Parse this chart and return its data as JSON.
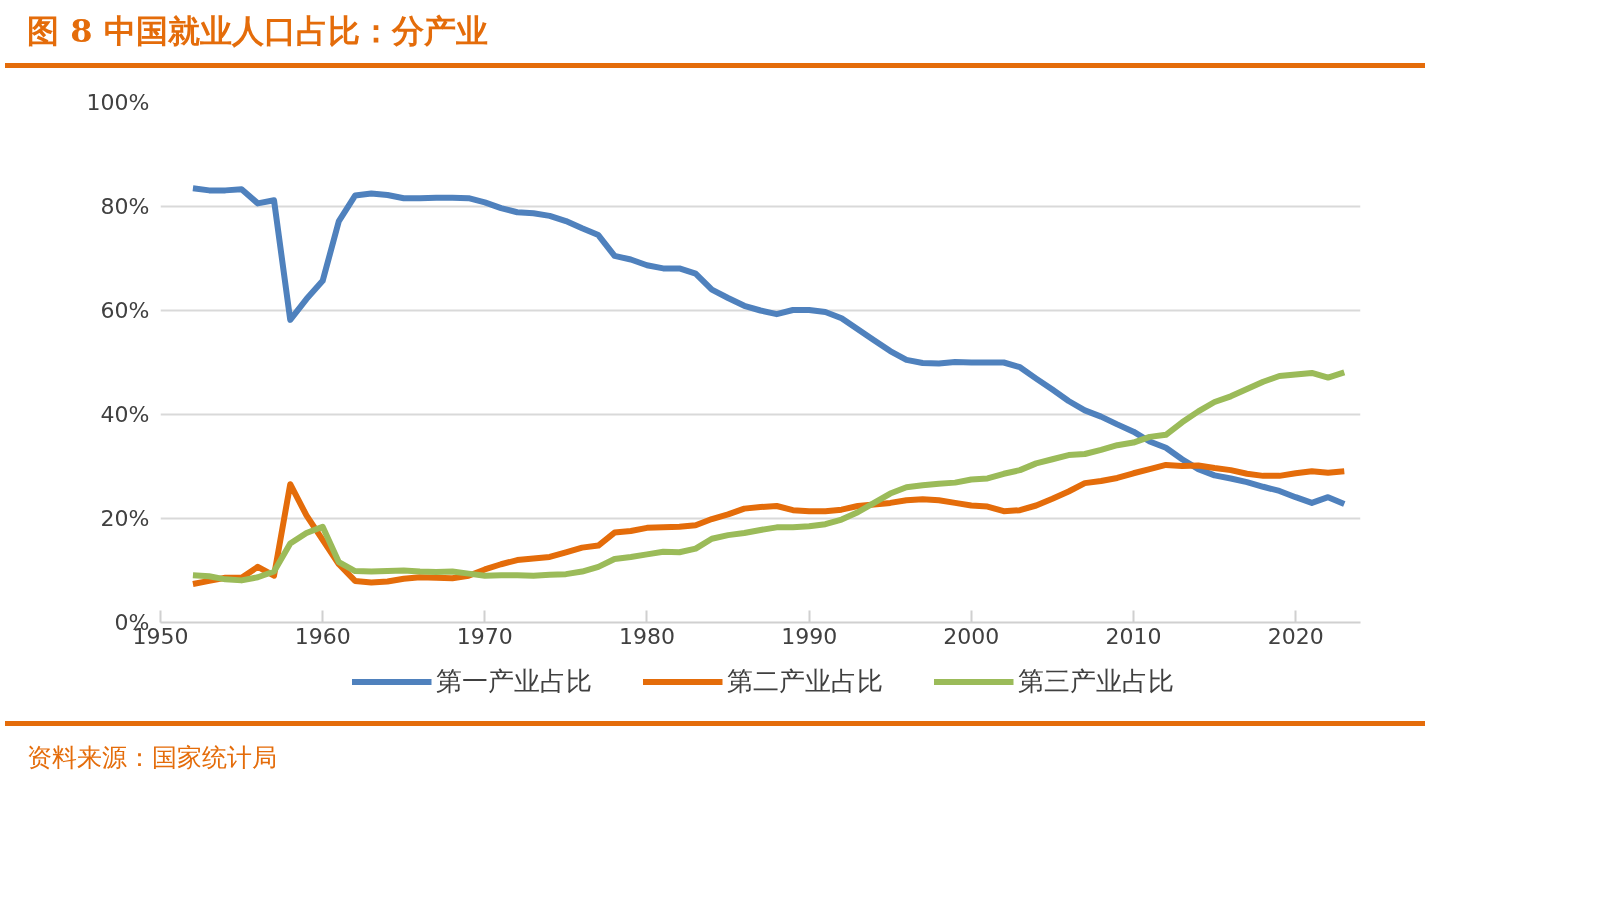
{
  "chart_data": {
    "type": "line",
    "title": "图 8  中国就业人口占比：分产业",
    "annotations": [
      "资料来源：国家统计局"
    ],
    "x": [
      1952,
      1953,
      1954,
      1955,
      1956,
      1957,
      1958,
      1959,
      1960,
      1961,
      1962,
      1963,
      1964,
      1965,
      1966,
      1967,
      1968,
      1969,
      1970,
      1971,
      1972,
      1973,
      1974,
      1975,
      1976,
      1977,
      1978,
      1979,
      1980,
      1981,
      1982,
      1983,
      1984,
      1985,
      1986,
      1987,
      1988,
      1989,
      1990,
      1991,
      1992,
      1993,
      1994,
      1995,
      1996,
      1997,
      1998,
      1999,
      2000,
      2001,
      2002,
      2003,
      2004,
      2005,
      2006,
      2007,
      2008,
      2009,
      2010,
      2011,
      2012,
      2013,
      2014,
      2015,
      2016,
      2017,
      2018,
      2019,
      2020,
      2021,
      2022,
      2023
    ],
    "series": [
      {
        "name": "第一产业占比",
        "color": "#4f81bd",
        "values": [
          83.5,
          83.1,
          83.1,
          83.3,
          80.6,
          81.2,
          58.2,
          62.2,
          65.7,
          77.2,
          82.1,
          82.5,
          82.2,
          81.6,
          81.6,
          81.7,
          81.7,
          81.6,
          80.8,
          79.7,
          78.9,
          78.7,
          78.2,
          77.2,
          75.8,
          74.5,
          70.5,
          69.8,
          68.7,
          68.1,
          68.1,
          67.1,
          64.0,
          62.4,
          60.9,
          60.0,
          59.3,
          60.1,
          60.1,
          59.7,
          58.5,
          56.4,
          54.3,
          52.2,
          50.5,
          49.9,
          49.8,
          50.1,
          50.0,
          50.0,
          50.0,
          49.1,
          46.9,
          44.8,
          42.6,
          40.8,
          39.6,
          38.1,
          36.7,
          34.8,
          33.6,
          31.4,
          29.5,
          28.3,
          27.7,
          27.0,
          26.1,
          25.3,
          24.1,
          23.0,
          24.1,
          22.8
        ]
      },
      {
        "name": "第二产业占比",
        "color": "#e46c0a",
        "values": [
          7.4,
          8.0,
          8.6,
          8.6,
          10.7,
          9.0,
          26.6,
          20.6,
          15.9,
          11.2,
          8.0,
          7.7,
          7.9,
          8.4,
          8.7,
          8.6,
          8.5,
          9.0,
          10.2,
          11.2,
          12.0,
          12.3,
          12.6,
          13.5,
          14.4,
          14.8,
          17.3,
          17.6,
          18.2,
          18.3,
          18.4,
          18.7,
          19.9,
          20.8,
          21.9,
          22.2,
          22.4,
          21.6,
          21.4,
          21.4,
          21.7,
          22.4,
          22.7,
          23.0,
          23.5,
          23.7,
          23.5,
          23.0,
          22.5,
          22.3,
          21.4,
          21.6,
          22.5,
          23.8,
          25.2,
          26.8,
          27.2,
          27.8,
          28.7,
          29.5,
          30.3,
          30.1,
          30.2,
          29.7,
          29.3,
          28.6,
          28.2,
          28.2,
          28.7,
          29.1,
          28.8,
          29.1
        ]
      },
      {
        "name": "第三产业占比",
        "color": "#9bbb59",
        "values": [
          9.1,
          8.9,
          8.3,
          8.1,
          8.7,
          9.8,
          15.2,
          17.2,
          18.4,
          11.6,
          9.9,
          9.8,
          9.9,
          10.0,
          9.8,
          9.7,
          9.8,
          9.4,
          9.0,
          9.1,
          9.1,
          9.0,
          9.2,
          9.3,
          9.8,
          10.7,
          12.2,
          12.6,
          13.1,
          13.6,
          13.5,
          14.2,
          16.1,
          16.8,
          17.2,
          17.8,
          18.3,
          18.3,
          18.5,
          18.9,
          19.8,
          21.2,
          23.0,
          24.8,
          26.0,
          26.4,
          26.7,
          26.9,
          27.5,
          27.7,
          28.6,
          29.3,
          30.6,
          31.4,
          32.2,
          32.4,
          33.2,
          34.1,
          34.6,
          35.7,
          36.1,
          38.5,
          40.6,
          42.4,
          43.5,
          44.9,
          46.3,
          47.4,
          47.7,
          48.0,
          47.1,
          48.1
        ]
      }
    ],
    "xlim": [
      1950,
      2024
    ],
    "xticks": [
      1950,
      1960,
      1970,
      1980,
      1990,
      2000,
      2010,
      2020
    ],
    "ylim": [
      0,
      100
    ],
    "yticks": [
      {
        "value": 0,
        "label": "0%"
      },
      {
        "value": 20,
        "label": "20%"
      },
      {
        "value": 40,
        "label": "40%"
      },
      {
        "value": 60,
        "label": "60%"
      },
      {
        "value": 80,
        "label": "80%"
      },
      {
        "value": 100,
        "label": "100%"
      }
    ],
    "grid": "y",
    "legend": "bottom",
    "marker": "none",
    "line_style": "solid"
  }
}
